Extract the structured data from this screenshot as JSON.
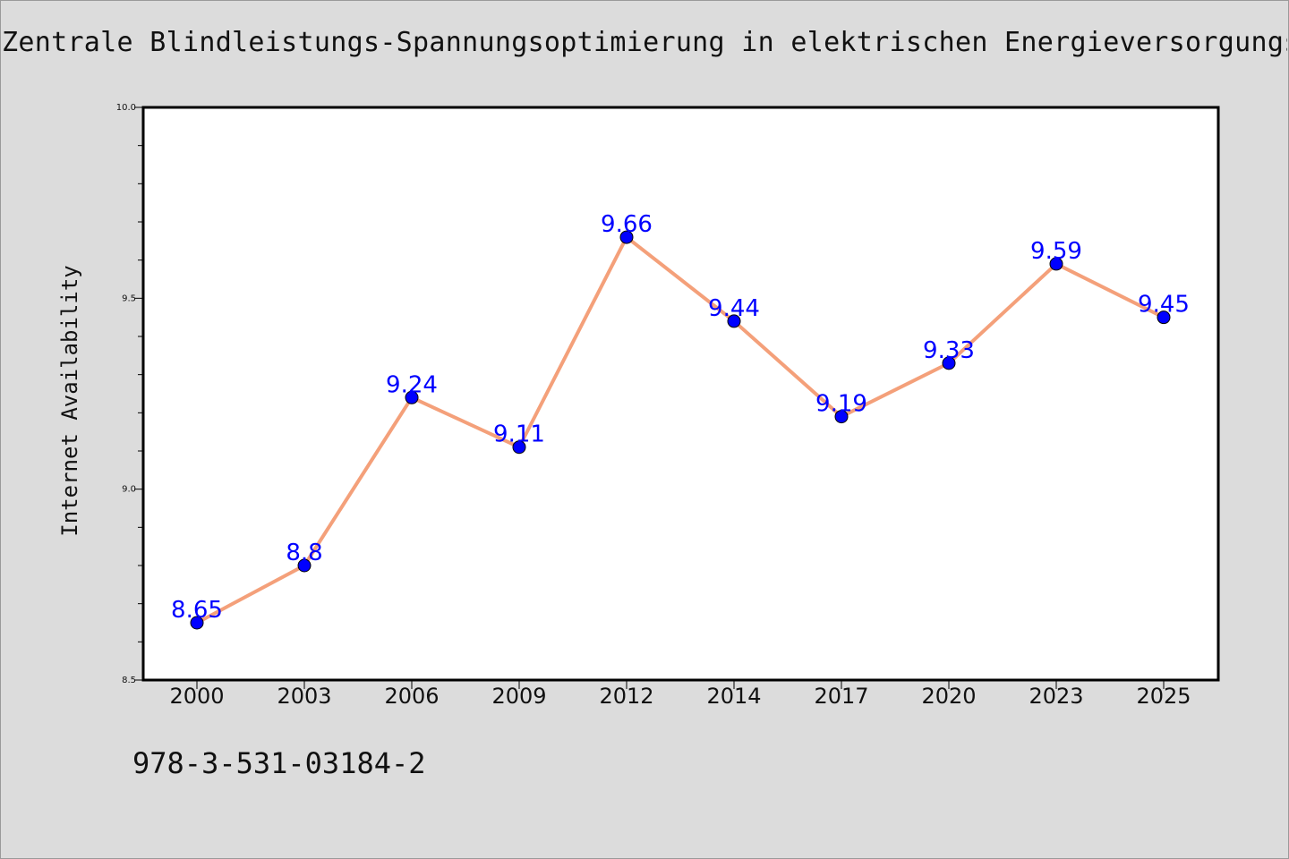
{
  "page": {
    "title": "Zentrale Blindleistungs-Spannungsoptimierung in elektrischen Energieversorgungss",
    "isbn": "978-3-531-03184-2"
  },
  "colors": {
    "background": "#dcdcdc",
    "plot_background": "#ffffff",
    "line": "#f4a07a",
    "marker": "#0000ff",
    "data_label": "#0000ff"
  },
  "chart_data": {
    "type": "line",
    "title": "Zentrale Blindleistungs-Spannungsoptimierung in elektrischen Energieversorgungss",
    "xlabel": "",
    "ylabel": "Internet Availability",
    "categories": [
      "2000",
      "2003",
      "2006",
      "2009",
      "2012",
      "2014",
      "2017",
      "2020",
      "2023",
      "2025"
    ],
    "series": [
      {
        "values": [
          8.65,
          8.8,
          9.24,
          9.11,
          9.66,
          9.44,
          9.19,
          9.33,
          9.59,
          9.45
        ],
        "labels": [
          "8.65",
          "8.8",
          "9.24",
          "9.11",
          "9.66",
          "9.44",
          "9.19",
          "9.33",
          "9.59",
          "9.45"
        ]
      }
    ],
    "ylim": [
      8.5,
      10.0
    ],
    "yticks": [
      8.5,
      9.0,
      9.5,
      10.0
    ],
    "ytick_labels": [
      "8.5",
      "9.0",
      "9.5",
      "10.0"
    ],
    "grid": false,
    "legend": "none"
  }
}
